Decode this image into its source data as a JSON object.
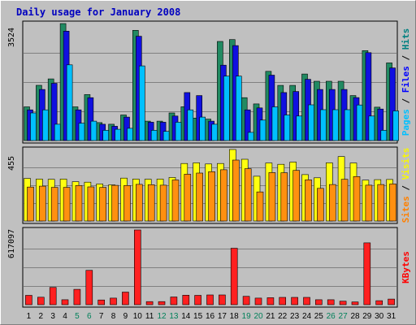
{
  "chart_data": {
    "type": "bar",
    "title": "Daily usage for January 2008",
    "categories": [
      "1",
      "2",
      "3",
      "4",
      "5",
      "6",
      "7",
      "8",
      "9",
      "10",
      "11",
      "12",
      "13",
      "14",
      "15",
      "16",
      "17",
      "18",
      "19",
      "20",
      "21",
      "22",
      "23",
      "24",
      "25",
      "26",
      "27",
      "28",
      "29",
      "30",
      "31"
    ],
    "weekend_days": [
      5,
      6,
      12,
      13,
      19,
      20,
      26,
      27
    ],
    "panels": [
      {
        "id": "hits",
        "max_label": "3524",
        "ymax": 3524,
        "legend": [
          {
            "text": "Pages",
            "color": "#00c0ff"
          },
          {
            "text": " / ",
            "color": "#000000"
          },
          {
            "text": "Files",
            "color": "#0000ff"
          },
          {
            "text": " / ",
            "color": "#000000"
          },
          {
            "text": "Hits",
            "color": "#008080"
          }
        ],
        "series": [
          {
            "name": "Hits",
            "color": "#218a62",
            "values": [
              1016,
              1663,
              1857,
              3524,
              1016,
              1386,
              542,
              493,
              770,
              3321,
              585,
              585,
              831,
              1018,
              678,
              647,
              2986,
              3043,
              1293,
              1104,
              2085,
              1662,
              1662,
              2005,
              1786,
              1786,
              1786,
              1355,
              2709,
              1006,
              2340
            ]
          },
          {
            "name": "Files",
            "color": "#1010e0",
            "values": [
              924,
              1540,
              1725,
              3296,
              924,
              1293,
              493,
              431,
              708,
              3142,
              554,
              554,
              739,
              1447,
              1355,
              585,
              2270,
              2860,
              924,
              985,
              1970,
              1447,
              1478,
              1845,
              1540,
              1540,
              1540,
              1294,
              2648,
              950,
              2189
            ]
          },
          {
            "name": "Pages",
            "color": "#00c0ff",
            "values": [
              832,
              924,
              493,
              2280,
              524,
              585,
              308,
              339,
              369,
              2248,
              308,
              277,
              554,
              924,
              708,
              493,
              1941,
              1941,
              246,
              616,
              1016,
              770,
              739,
              1078,
              931,
              931,
              931,
              1071,
              739,
              308,
              893
            ]
          }
        ]
      },
      {
        "id": "visits",
        "max_label": "455",
        "ymax": 455,
        "legend": [
          {
            "text": "Sites",
            "color": "#ff8000"
          },
          {
            "text": " / ",
            "color": "#000000"
          },
          {
            "text": "Visits",
            "color": "#f8f800"
          }
        ],
        "series": [
          {
            "name": "Visits",
            "color": "#ffff10",
            "values": [
              271,
              267,
              265,
              267,
              250,
              247,
              236,
              230,
              273,
              267,
              266,
              267,
              277,
              366,
              370,
              363,
              366,
              455,
              393,
              285,
              369,
              361,
              375,
              295,
              275,
              370,
              410,
              369,
              260,
              263,
              264
            ]
          },
          {
            "name": "Sites",
            "color": "#ff9010",
            "values": [
              216,
              222,
              214,
              214,
              226,
              217,
              214,
              227,
              226,
              233,
              231,
              228,
              261,
              298,
              305,
              314,
              326,
              388,
              333,
              185,
              308,
              307,
              322,
              262,
              208,
              232,
              265,
              283,
              228,
              232,
              236
            ]
          }
        ]
      },
      {
        "id": "kbytes",
        "max_label": "617097",
        "ymax": 617097,
        "legend": [
          {
            "text": "KBytes",
            "color": "#ff0000"
          }
        ],
        "series": [
          {
            "name": "KBytes",
            "color": "#ff2020",
            "values": [
              77144,
              61716,
              143003,
              41143,
              126717,
              283437,
              39087,
              54472,
              103959,
              617097,
              25715,
              25715,
              63772,
              78172,
              77144,
              80229,
              80229,
              466430,
              68915,
              54500,
              57587,
              60658,
              60658,
              60658,
              41143,
              41143,
              28801,
              22628,
              510659,
              32915,
              46286
            ]
          }
        ]
      }
    ]
  }
}
